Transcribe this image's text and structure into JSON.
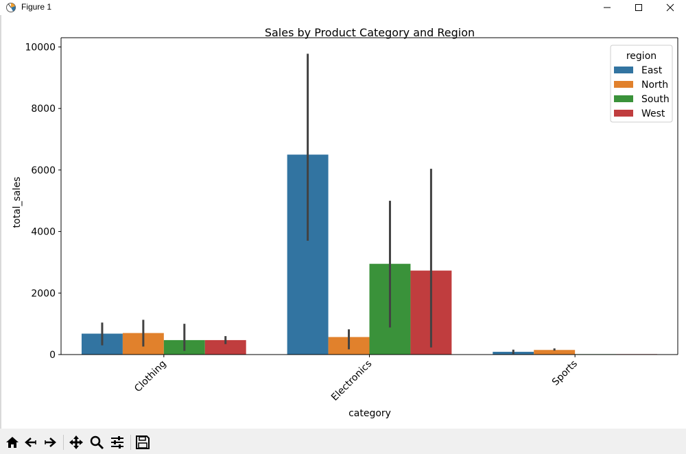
{
  "window": {
    "title": "Figure 1"
  },
  "chart_data": {
    "type": "bar",
    "title": "Sales by Product Category and Region",
    "xlabel": "category",
    "ylabel": "total_sales",
    "categories": [
      "Clothing",
      "Electronics",
      "Sports"
    ],
    "ylim": [
      0,
      10300
    ],
    "yticks": [
      0,
      2000,
      4000,
      6000,
      8000,
      10000
    ],
    "ytick_labels": [
      "0",
      "2000",
      "4000",
      "6000",
      "8000",
      "10000"
    ],
    "legend": {
      "title": "region",
      "placement": "top-right"
    },
    "series": [
      {
        "name": "East",
        "color": "#3274a1",
        "values": [
          680,
          6500,
          90
        ],
        "err_low": [
          300,
          3700,
          20
        ],
        "err_high": [
          1040,
          9780,
          160
        ]
      },
      {
        "name": "North",
        "color": "#e1812c",
        "values": [
          700,
          570,
          150
        ],
        "err_low": [
          260,
          170,
          130
        ],
        "err_high": [
          1130,
          820,
          200
        ]
      },
      {
        "name": "South",
        "color": "#3a923a",
        "values": [
          470,
          2950,
          15
        ],
        "err_low": [
          120,
          880,
          15
        ],
        "err_high": [
          1000,
          5000,
          15
        ]
      },
      {
        "name": "West",
        "color": "#c03d3e",
        "values": [
          470,
          2730,
          15
        ],
        "err_low": [
          340,
          230,
          15
        ],
        "err_high": [
          600,
          6040,
          15
        ]
      }
    ],
    "grid": false
  },
  "toolbar": {
    "items": [
      {
        "name": "home-icon"
      },
      {
        "name": "back-arrow-icon"
      },
      {
        "name": "forward-arrow-icon"
      },
      {
        "name": "pan-icon"
      },
      {
        "name": "zoom-icon"
      },
      {
        "name": "configure-subplots-icon"
      },
      {
        "name": "save-icon"
      }
    ]
  }
}
